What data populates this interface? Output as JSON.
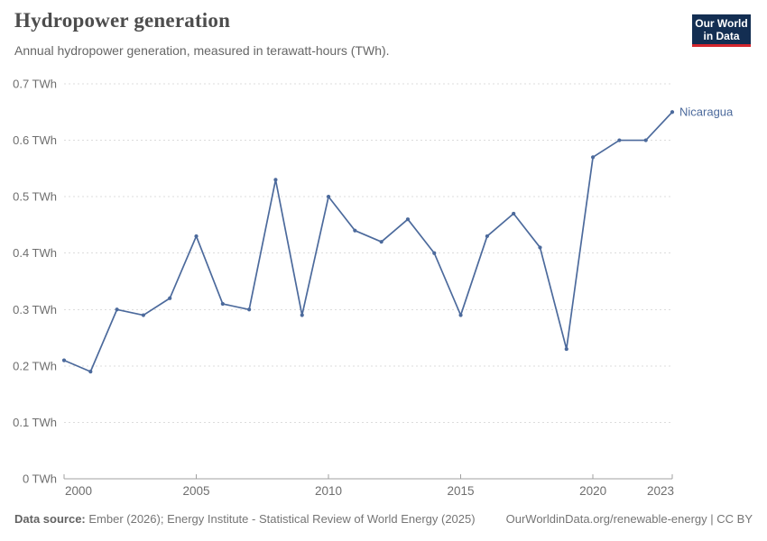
{
  "header": {
    "title": "Hydropower generation",
    "subtitle": "Annual hydropower generation, measured in terawatt-hours (TWh).",
    "logo": {
      "line1": "Our World",
      "line2": "in Data"
    }
  },
  "chart_data": {
    "type": "line",
    "title": "Hydropower generation",
    "subtitle": "Annual hydropower generation, measured in terawatt-hours (TWh).",
    "xlabel": "",
    "ylabel": "TWh",
    "xlim": [
      2000,
      2023
    ],
    "ylim": [
      0,
      0.7
    ],
    "grid": "horizontal-dashed",
    "legend_position": "end-of-line-label",
    "x_ticks": [
      2000,
      2005,
      2010,
      2015,
      2020,
      2023
    ],
    "y_ticks": [
      {
        "value": 0,
        "label": "0 TWh"
      },
      {
        "value": 0.1,
        "label": "0.1 TWh"
      },
      {
        "value": 0.2,
        "label": "0.2 TWh"
      },
      {
        "value": 0.3,
        "label": "0.3 TWh"
      },
      {
        "value": 0.4,
        "label": "0.4 TWh"
      },
      {
        "value": 0.5,
        "label": "0.5 TWh"
      },
      {
        "value": 0.6,
        "label": "0.6 TWh"
      },
      {
        "value": 0.7,
        "label": "0.7 TWh"
      }
    ],
    "series": [
      {
        "name": "Nicaragua",
        "color": "#4c6a9c",
        "x": [
          2000,
          2001,
          2002,
          2003,
          2004,
          2005,
          2006,
          2007,
          2008,
          2009,
          2010,
          2011,
          2012,
          2013,
          2014,
          2015,
          2016,
          2017,
          2018,
          2019,
          2020,
          2021,
          2022,
          2023
        ],
        "values": [
          0.21,
          0.19,
          0.3,
          0.29,
          0.32,
          0.43,
          0.31,
          0.3,
          0.53,
          0.29,
          0.5,
          0.44,
          0.42,
          0.46,
          0.4,
          0.29,
          0.43,
          0.47,
          0.41,
          0.23,
          0.57,
          0.6,
          0.6,
          0.65
        ]
      }
    ]
  },
  "footer": {
    "source_label": "Data source:",
    "source_text": " Ember (2026); Energy Institute - Statistical Review of World Energy (2025)",
    "rights": "OurWorldinData.org/renewable-energy | CC BY"
  },
  "colors": {
    "line": "#4c6a9c",
    "gridline": "#dcdcdc",
    "axis_line": "#a0a0a0",
    "axis_text": "#6e6e6e",
    "title": "#4d4d4d",
    "subtitle": "#666666",
    "footer_text": "#757575",
    "logo_bg": "#132e52",
    "logo_red": "#d4262e",
    "logo_text": "#ffffff"
  }
}
